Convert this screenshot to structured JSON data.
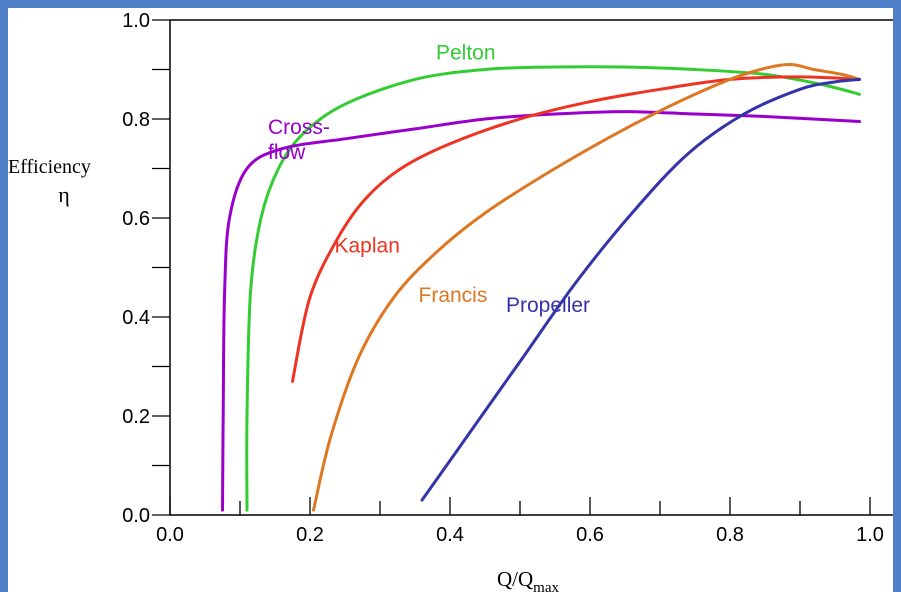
{
  "chart_data": {
    "type": "line",
    "title": "",
    "xlabel": "Q/Q",
    "xlabel_subscript": "max",
    "ylabel": "Efficiency",
    "ylabel_symbol": "η",
    "xlim": [
      0.0,
      1.0
    ],
    "ylim": [
      0.0,
      1.0
    ],
    "x_ticks": [
      "0.0",
      "0.2",
      "0.4",
      "0.6",
      "0.8",
      "1.0"
    ],
    "y_ticks": [
      "0.0",
      "0.2",
      "0.4",
      "0.6",
      "0.8",
      "1.0"
    ],
    "grid": false,
    "legend": "inline labels",
    "series": [
      {
        "name": "Pelton",
        "color": "#33cc33",
        "label_anchor": [
          0.38,
          0.92
        ],
        "points": [
          [
            0.11,
            0.01
          ],
          [
            0.11,
            0.2
          ],
          [
            0.115,
            0.45
          ],
          [
            0.13,
            0.6
          ],
          [
            0.155,
            0.7
          ],
          [
            0.19,
            0.77
          ],
          [
            0.25,
            0.83
          ],
          [
            0.35,
            0.88
          ],
          [
            0.45,
            0.9
          ],
          [
            0.55,
            0.905
          ],
          [
            0.65,
            0.905
          ],
          [
            0.75,
            0.9
          ],
          [
            0.85,
            0.89
          ],
          [
            0.93,
            0.87
          ],
          [
            0.985,
            0.85
          ]
        ]
      },
      {
        "name": "Cross-\nflow",
        "color": "#9900cc",
        "label_anchor": [
          0.14,
          0.77
        ],
        "points": [
          [
            0.075,
            0.01
          ],
          [
            0.076,
            0.2
          ],
          [
            0.078,
            0.45
          ],
          [
            0.085,
            0.6
          ],
          [
            0.11,
            0.7
          ],
          [
            0.16,
            0.74
          ],
          [
            0.25,
            0.76
          ],
          [
            0.35,
            0.78
          ],
          [
            0.45,
            0.8
          ],
          [
            0.55,
            0.81
          ],
          [
            0.65,
            0.815
          ],
          [
            0.75,
            0.81
          ],
          [
            0.85,
            0.805
          ],
          [
            0.985,
            0.795
          ]
        ]
      },
      {
        "name": "Kaplan",
        "color": "#ee3322",
        "label_anchor": [
          0.235,
          0.53
        ],
        "points": [
          [
            0.175,
            0.27
          ],
          [
            0.2,
            0.44
          ],
          [
            0.24,
            0.56
          ],
          [
            0.28,
            0.64
          ],
          [
            0.33,
            0.7
          ],
          [
            0.4,
            0.75
          ],
          [
            0.5,
            0.8
          ],
          [
            0.6,
            0.835
          ],
          [
            0.7,
            0.86
          ],
          [
            0.8,
            0.88
          ],
          [
            0.9,
            0.885
          ],
          [
            0.985,
            0.88
          ]
        ]
      },
      {
        "name": "Francis",
        "color": "#dd7722",
        "label_anchor": [
          0.355,
          0.43
        ],
        "points": [
          [
            0.205,
            0.01
          ],
          [
            0.23,
            0.16
          ],
          [
            0.27,
            0.32
          ],
          [
            0.32,
            0.44
          ],
          [
            0.38,
            0.53
          ],
          [
            0.45,
            0.61
          ],
          [
            0.55,
            0.7
          ],
          [
            0.65,
            0.78
          ],
          [
            0.75,
            0.85
          ],
          [
            0.82,
            0.89
          ],
          [
            0.88,
            0.91
          ],
          [
            0.92,
            0.9
          ],
          [
            0.96,
            0.89
          ],
          [
            0.985,
            0.88
          ]
        ]
      },
      {
        "name": "Propeller",
        "color": "#3333aa",
        "label_anchor": [
          0.48,
          0.41
        ],
        "points": [
          [
            0.36,
            0.03
          ],
          [
            0.42,
            0.15
          ],
          [
            0.5,
            0.31
          ],
          [
            0.58,
            0.47
          ],
          [
            0.66,
            0.61
          ],
          [
            0.74,
            0.73
          ],
          [
            0.82,
            0.81
          ],
          [
            0.9,
            0.86
          ],
          [
            0.95,
            0.875
          ],
          [
            0.985,
            0.88
          ]
        ]
      }
    ]
  }
}
